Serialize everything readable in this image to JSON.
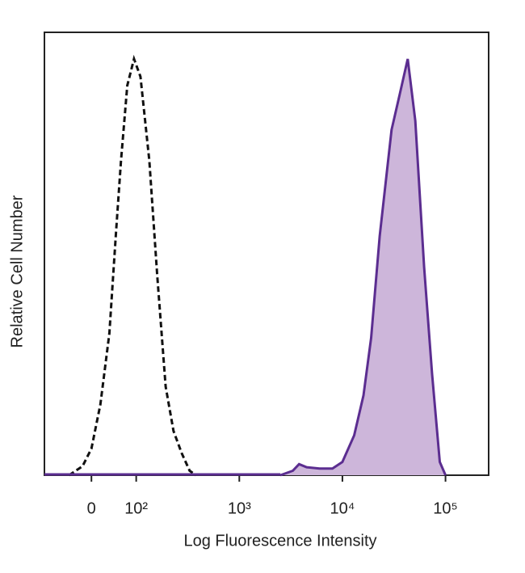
{
  "chart_data": {
    "type": "histogram",
    "x_label": "Log Fluorescence Intensity",
    "y_label": "Relative Cell Number",
    "xscale": "biexponential",
    "xlim": [
      -105,
      262143
    ],
    "xticks": [
      0,
      {
        "value": 100,
        "label": "10²"
      },
      {
        "value": 1000,
        "label": "10³"
      },
      {
        "value": 10000,
        "label": "10⁴"
      },
      {
        "value": 100000,
        "label": "10⁵"
      }
    ],
    "ylim": [
      0,
      100
    ],
    "series": [
      {
        "color": "#111111",
        "line_style": "dashed",
        "fill": null,
        "x": [
          -50,
          -20,
          0,
          20,
          40,
          55,
          66,
          80,
          95,
          110,
          134,
          160,
          193,
          230,
          276,
          330,
          380
        ],
        "values": [
          0,
          2,
          6,
          16,
          32,
          55,
          71,
          88,
          94,
          90,
          71,
          45,
          20,
          10,
          5,
          1,
          0
        ]
      },
      {
        "color": "#5b2d90",
        "line_style": "solid",
        "fill": "#cdb6da",
        "x": [
          2500,
          3300,
          3800,
          4500,
          6000,
          8000,
          10000,
          13000,
          16000,
          19000,
          23000,
          30000,
          36000,
          43000,
          51000,
          62000,
          74000,
          88000,
          100000
        ],
        "values": [
          0,
          1,
          2.5,
          1.8,
          1.5,
          1.5,
          3,
          9,
          18,
          31,
          54,
          78,
          86,
          94,
          80,
          47,
          23,
          3,
          0
        ]
      }
    ]
  }
}
